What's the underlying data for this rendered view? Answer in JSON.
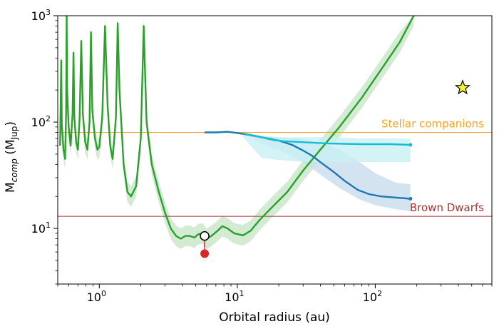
{
  "chart_data": {
    "type": "line",
    "title": "",
    "xlabel": "Orbital radius (au)",
    "ylabel": {
      "main": "M",
      "sub1": "comp",
      "mid": " (M",
      "sub2": "Jup",
      "end": ")"
    },
    "xscale": "log",
    "yscale": "log",
    "xlim": [
      0.5,
      700
    ],
    "ylim": [
      3,
      1000
    ],
    "grid": false,
    "x_ticks": [
      {
        "value": 1,
        "base": "10",
        "exp": "0"
      },
      {
        "value": 10,
        "base": "10",
        "exp": "1"
      },
      {
        "value": 100,
        "base": "10",
        "exp": "2"
      }
    ],
    "y_ticks": [
      {
        "value": 10,
        "base": "10",
        "exp": "1"
      },
      {
        "value": 100,
        "base": "10",
        "exp": "2"
      },
      {
        "value": 1000,
        "base": "10",
        "exp": "3"
      }
    ],
    "reference_lines": [
      {
        "label": "Stellar companions",
        "y": 80,
        "color": "#f5a623"
      },
      {
        "label": "Brown Dwarfs",
        "y": 13,
        "color": "#a83232"
      }
    ],
    "series": [
      {
        "color": "#2ca02c",
        "band_color": "#c8e6c8",
        "style": "detection-limit",
        "points": [
          [
            0.52,
            60
          ],
          [
            0.53,
            380
          ],
          [
            0.535,
            95
          ],
          [
            0.55,
            55
          ],
          [
            0.565,
            45
          ],
          [
            0.575,
            120
          ],
          [
            0.58,
            1000
          ],
          [
            0.585,
            200
          ],
          [
            0.6,
            90
          ],
          [
            0.62,
            60
          ],
          [
            0.64,
            120
          ],
          [
            0.65,
            450
          ],
          [
            0.66,
            110
          ],
          [
            0.68,
            65
          ],
          [
            0.7,
            55
          ],
          [
            0.72,
            110
          ],
          [
            0.74,
            580
          ],
          [
            0.76,
            120
          ],
          [
            0.79,
            65
          ],
          [
            0.82,
            55
          ],
          [
            0.85,
            100
          ],
          [
            0.87,
            700
          ],
          [
            0.89,
            130
          ],
          [
            0.93,
            70
          ],
          [
            0.97,
            55
          ],
          [
            1.0,
            58
          ],
          [
            1.05,
            110
          ],
          [
            1.1,
            800
          ],
          [
            1.15,
            140
          ],
          [
            1.2,
            60
          ],
          [
            1.25,
            45
          ],
          [
            1.32,
            110
          ],
          [
            1.36,
            850
          ],
          [
            1.4,
            200
          ],
          [
            1.5,
            40
          ],
          [
            1.6,
            22
          ],
          [
            1.7,
            20
          ],
          [
            1.85,
            25
          ],
          [
            2.0,
            70
          ],
          [
            2.1,
            800
          ],
          [
            2.2,
            100
          ],
          [
            2.4,
            40
          ],
          [
            2.7,
            22
          ],
          [
            3.0,
            14
          ],
          [
            3.3,
            10
          ],
          [
            3.6,
            8.5
          ],
          [
            3.9,
            8.0
          ],
          [
            4.2,
            8.5
          ],
          [
            4.5,
            8.5
          ],
          [
            4.9,
            8.2
          ],
          [
            5.2,
            8.8
          ],
          [
            5.6,
            9.0
          ],
          [
            6.0,
            8.0
          ],
          [
            6.5,
            8.5
          ],
          [
            7.2,
            9.5
          ],
          [
            7.8,
            10.5
          ],
          [
            8.5,
            10.0
          ],
          [
            9.5,
            9.0
          ],
          [
            11.0,
            8.6
          ],
          [
            12.5,
            9.5
          ],
          [
            14.5,
            12
          ],
          [
            18,
            16
          ],
          [
            23,
            22
          ],
          [
            30,
            35
          ],
          [
            40,
            55
          ],
          [
            55,
            90
          ],
          [
            80,
            170
          ],
          [
            110,
            310
          ],
          [
            150,
            560
          ],
          [
            190,
            1000
          ]
        ],
        "band_factor": 1.25
      },
      {
        "color": "#1f77b4",
        "band_color": "#c9dcec",
        "style": "contrast-curve-1",
        "points": [
          [
            5.8,
            80
          ],
          [
            7,
            80
          ],
          [
            8.5,
            81
          ],
          [
            10,
            79
          ],
          [
            12,
            76
          ],
          [
            15,
            72
          ],
          [
            20,
            67
          ],
          [
            25,
            61
          ],
          [
            30,
            54
          ],
          [
            35,
            48
          ],
          [
            40,
            42
          ],
          [
            50,
            34
          ],
          [
            60,
            28
          ],
          [
            75,
            23
          ],
          [
            90,
            21
          ],
          [
            110,
            20
          ],
          [
            140,
            19.5
          ],
          [
            180,
            19
          ]
        ],
        "band_points": [
          [
            11,
            80,
            80
          ],
          [
            15,
            74,
            62
          ],
          [
            20,
            72,
            55
          ],
          [
            30,
            70,
            42
          ],
          [
            40,
            64,
            32
          ],
          [
            55,
            55,
            24
          ],
          [
            75,
            43,
            19
          ],
          [
            100,
            33,
            16.5
          ],
          [
            140,
            27,
            15.2
          ],
          [
            180,
            26,
            14.5
          ]
        ]
      },
      {
        "color": "#17becf",
        "band_color": "#c8f0f5",
        "style": "contrast-curve-2",
        "points": [
          [
            11,
            78
          ],
          [
            13,
            75
          ],
          [
            15,
            72
          ],
          [
            18,
            68
          ],
          [
            22,
            66
          ],
          [
            28,
            65
          ],
          [
            35,
            64
          ],
          [
            45,
            63
          ],
          [
            60,
            62.5
          ],
          [
            80,
            62
          ],
          [
            100,
            62
          ],
          [
            130,
            62
          ],
          [
            180,
            61
          ]
        ],
        "band_points": [
          [
            11,
            78,
            72
          ],
          [
            15,
            74,
            46
          ],
          [
            20,
            72,
            44
          ],
          [
            30,
            72,
            42
          ],
          [
            50,
            72,
            42
          ],
          [
            80,
            70,
            42
          ],
          [
            120,
            70,
            42
          ],
          [
            180,
            70,
            42
          ]
        ]
      }
    ],
    "detections": [
      {
        "x": 5.8,
        "y": 8.5,
        "marker": "open-circle",
        "edge_color": "#000000",
        "fill": "#ffffff"
      },
      {
        "x": 5.8,
        "y": 5.8,
        "marker": "filled-circle",
        "fill": "#d62728"
      }
    ],
    "star_marker": {
      "x": 430,
      "y": 210,
      "fill": "#f5f530",
      "edge_color": "#000000"
    }
  }
}
